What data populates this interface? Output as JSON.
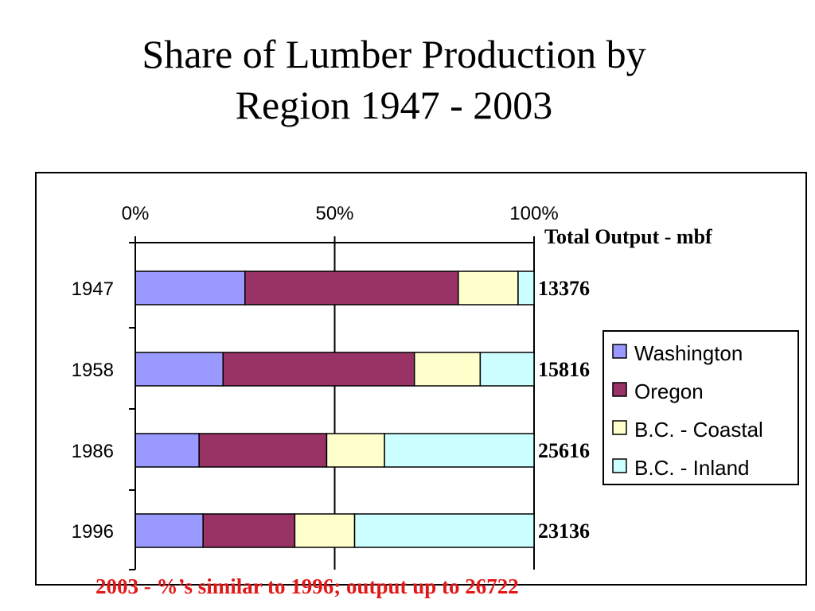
{
  "title_line1": "Share of Lumber Production by",
  "title_line2": "Region 1947 - 2003",
  "note": "2003 - %’s similar to 1996; output up to 26722",
  "chart_data": {
    "type": "bar",
    "orientation": "horizontal",
    "stacked": "percent",
    "categories": [
      "1947",
      "1958",
      "1986",
      "1996"
    ],
    "x_ticks": [
      "0%",
      "50%",
      "100%"
    ],
    "xlim": [
      0,
      100
    ],
    "grid": "vertical at 50%",
    "series": [
      {
        "name": "Washington",
        "color": "#9999ff",
        "values": [
          27.5,
          22,
          16,
          17
        ]
      },
      {
        "name": "Oregon",
        "color": "#993366",
        "values": [
          53.5,
          48,
          32,
          23
        ]
      },
      {
        "name": "B.C. - Coastal",
        "color": "#ffffcc",
        "values": [
          15,
          16.5,
          14.5,
          15
        ]
      },
      {
        "name": "B.C. - Inland",
        "color": "#ccffff",
        "values": [
          4,
          13.5,
          37.5,
          45
        ]
      }
    ],
    "totals_header": "Total Output - mbf",
    "totals": [
      "13376",
      "15816",
      "25616",
      "23136"
    ],
    "legend_position": "right"
  }
}
